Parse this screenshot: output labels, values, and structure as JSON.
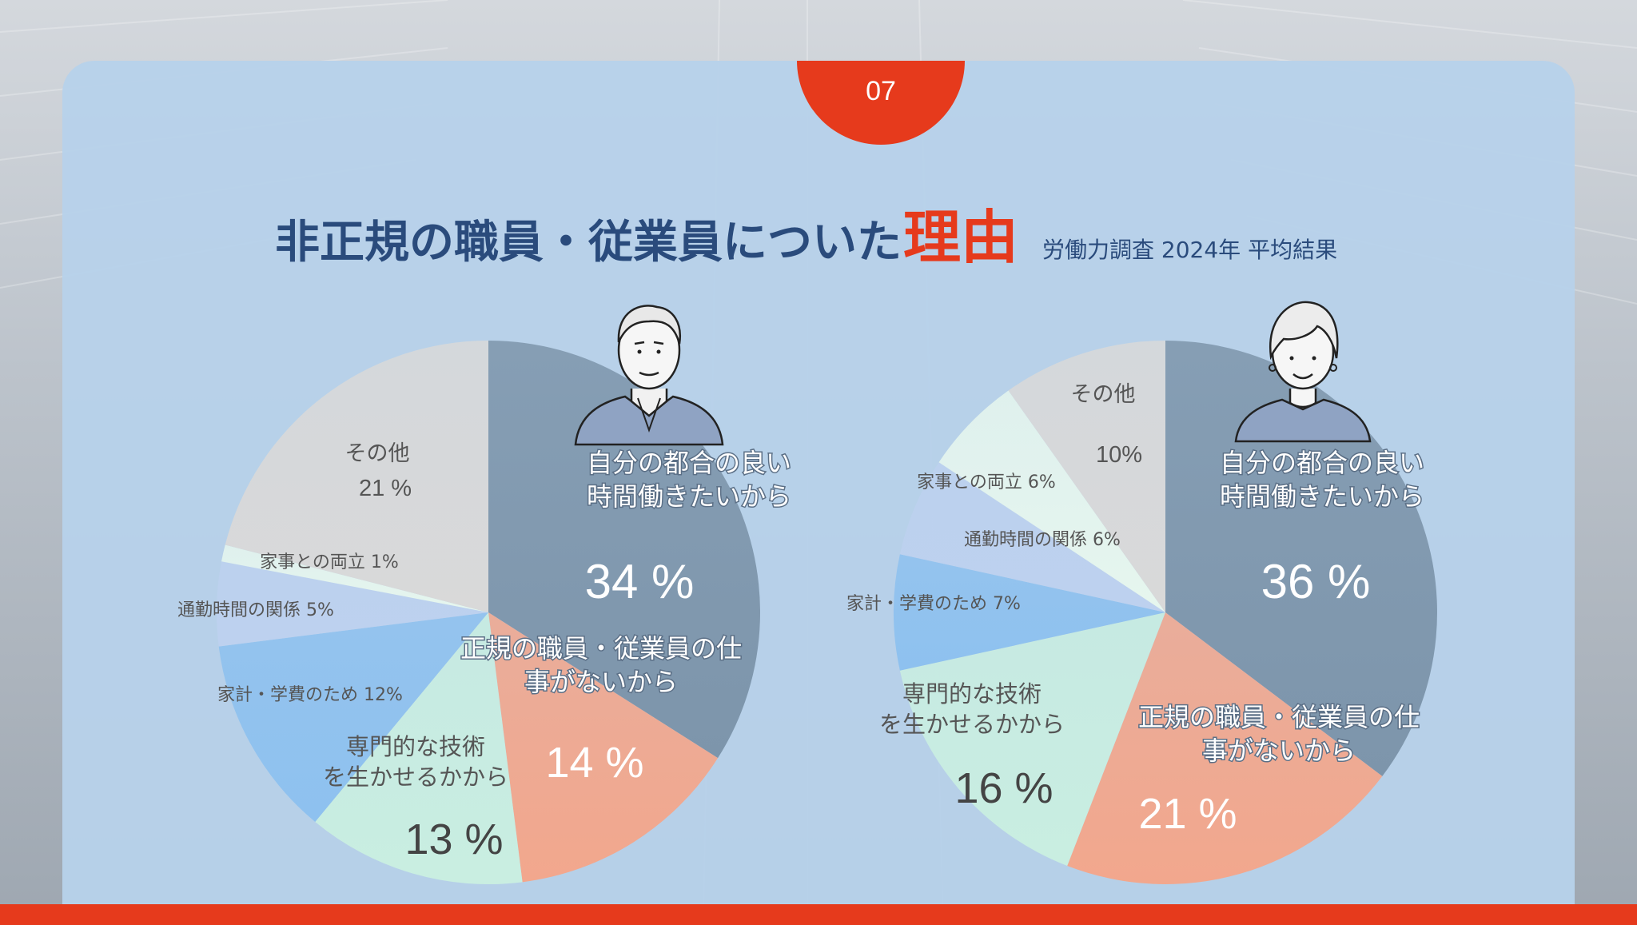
{
  "slide": {
    "page_number": "07",
    "title_main": "非正規の職員・従業員についた",
    "title_accent": "理由",
    "subtitle": "労働力調査 2024年 平均結果"
  },
  "colors": {
    "accent": "#e63a1c",
    "title": "#2a4b7c",
    "card": "#b7d1ea"
  },
  "icons": [
    "man-illustration-icon",
    "woman-illustration-icon"
  ],
  "chart_data": [
    {
      "type": "pie",
      "title": "",
      "slices": [
        {
          "label": "自分の都合の良い時間働きたいから",
          "value": 34,
          "value_label": "34 %",
          "color": "#7d95ab"
        },
        {
          "label": "正規の職員・従業員の仕事がないから",
          "value": 14,
          "value_label": "14 %",
          "color": "#f2a78d"
        },
        {
          "label": "専門的な技術を生かせるかから",
          "value": 13,
          "value_label": "13 %",
          "color": "#c9eee1"
        },
        {
          "label": "家計・学費のため 12%",
          "value": 12,
          "value_label": "",
          "color": "#8ec1ef"
        },
        {
          "label": "通勤時間の関係 5%",
          "value": 5,
          "value_label": "",
          "color": "#bdd1ef"
        },
        {
          "label": "家事との両立 1%",
          "value": 1,
          "value_label": "",
          "color": "#e6f6ee"
        },
        {
          "label": "その他",
          "value": 21,
          "value_label": "21 %",
          "color": "#d9d9d9"
        }
      ]
    },
    {
      "type": "pie",
      "title": "",
      "slices": [
        {
          "label": "自分の都合の良い時間働きたいから",
          "value": 36,
          "value_label": "36 %",
          "color": "#7d95ab"
        },
        {
          "label": "正規の職員・従業員の仕事がないから",
          "value": 21,
          "value_label": "21 %",
          "color": "#f2a78d"
        },
        {
          "label": "専門的な技術を生かせるかから",
          "value": 16,
          "value_label": "16 %",
          "color": "#c9eee1"
        },
        {
          "label": "家計・学費のため 7%",
          "value": 7,
          "value_label": "",
          "color": "#8ec1ef"
        },
        {
          "label": "通勤時間の関係 6%",
          "value": 6,
          "value_label": "",
          "color": "#bdd1ef"
        },
        {
          "label": "家事との両立 6%",
          "value": 6,
          "value_label": "",
          "color": "#e6f6ee"
        },
        {
          "label": "その他",
          "value": 10,
          "value_label": "10%",
          "color": "#d9d9d9"
        }
      ]
    }
  ]
}
